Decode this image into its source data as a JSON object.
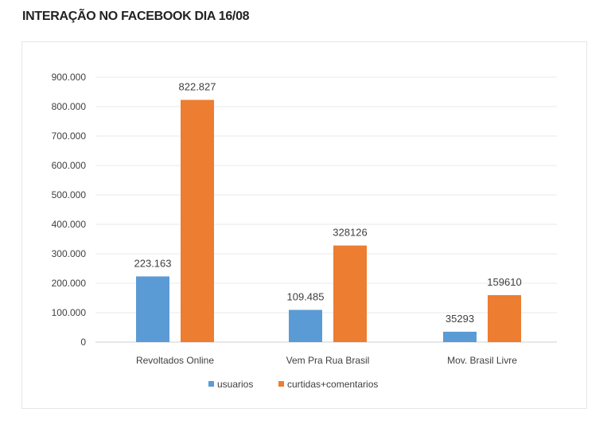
{
  "chart_data": {
    "type": "bar",
    "title": "INTERAÇÃO NO FACEBOOK DIA 16/08",
    "categories": [
      "Revoltados Online",
      "Vem Pra Rua Brasil",
      "Mov. Brasil Livre"
    ],
    "series": [
      {
        "name": "usuarios",
        "color": "#5b9bd5",
        "values": [
          223163,
          109485,
          35293
        ],
        "labels": [
          "223.163",
          "109.485",
          "35293"
        ]
      },
      {
        "name": "curtidas+comentarios",
        "color": "#ed7d31",
        "values": [
          822827,
          328126,
          159610
        ],
        "labels": [
          "822.827",
          "328126",
          "159610"
        ]
      }
    ],
    "ylim": [
      0,
      900000
    ],
    "yticks": [
      0,
      100000,
      200000,
      300000,
      400000,
      500000,
      600000,
      700000,
      800000,
      900000
    ],
    "ytick_labels": [
      "0",
      "100.000",
      "200.000",
      "300.000",
      "400.000",
      "500.000",
      "600.000",
      "700.000",
      "800.000",
      "900.000"
    ],
    "grid": true,
    "legend": "bottom",
    "xlabel": "",
    "ylabel": ""
  }
}
